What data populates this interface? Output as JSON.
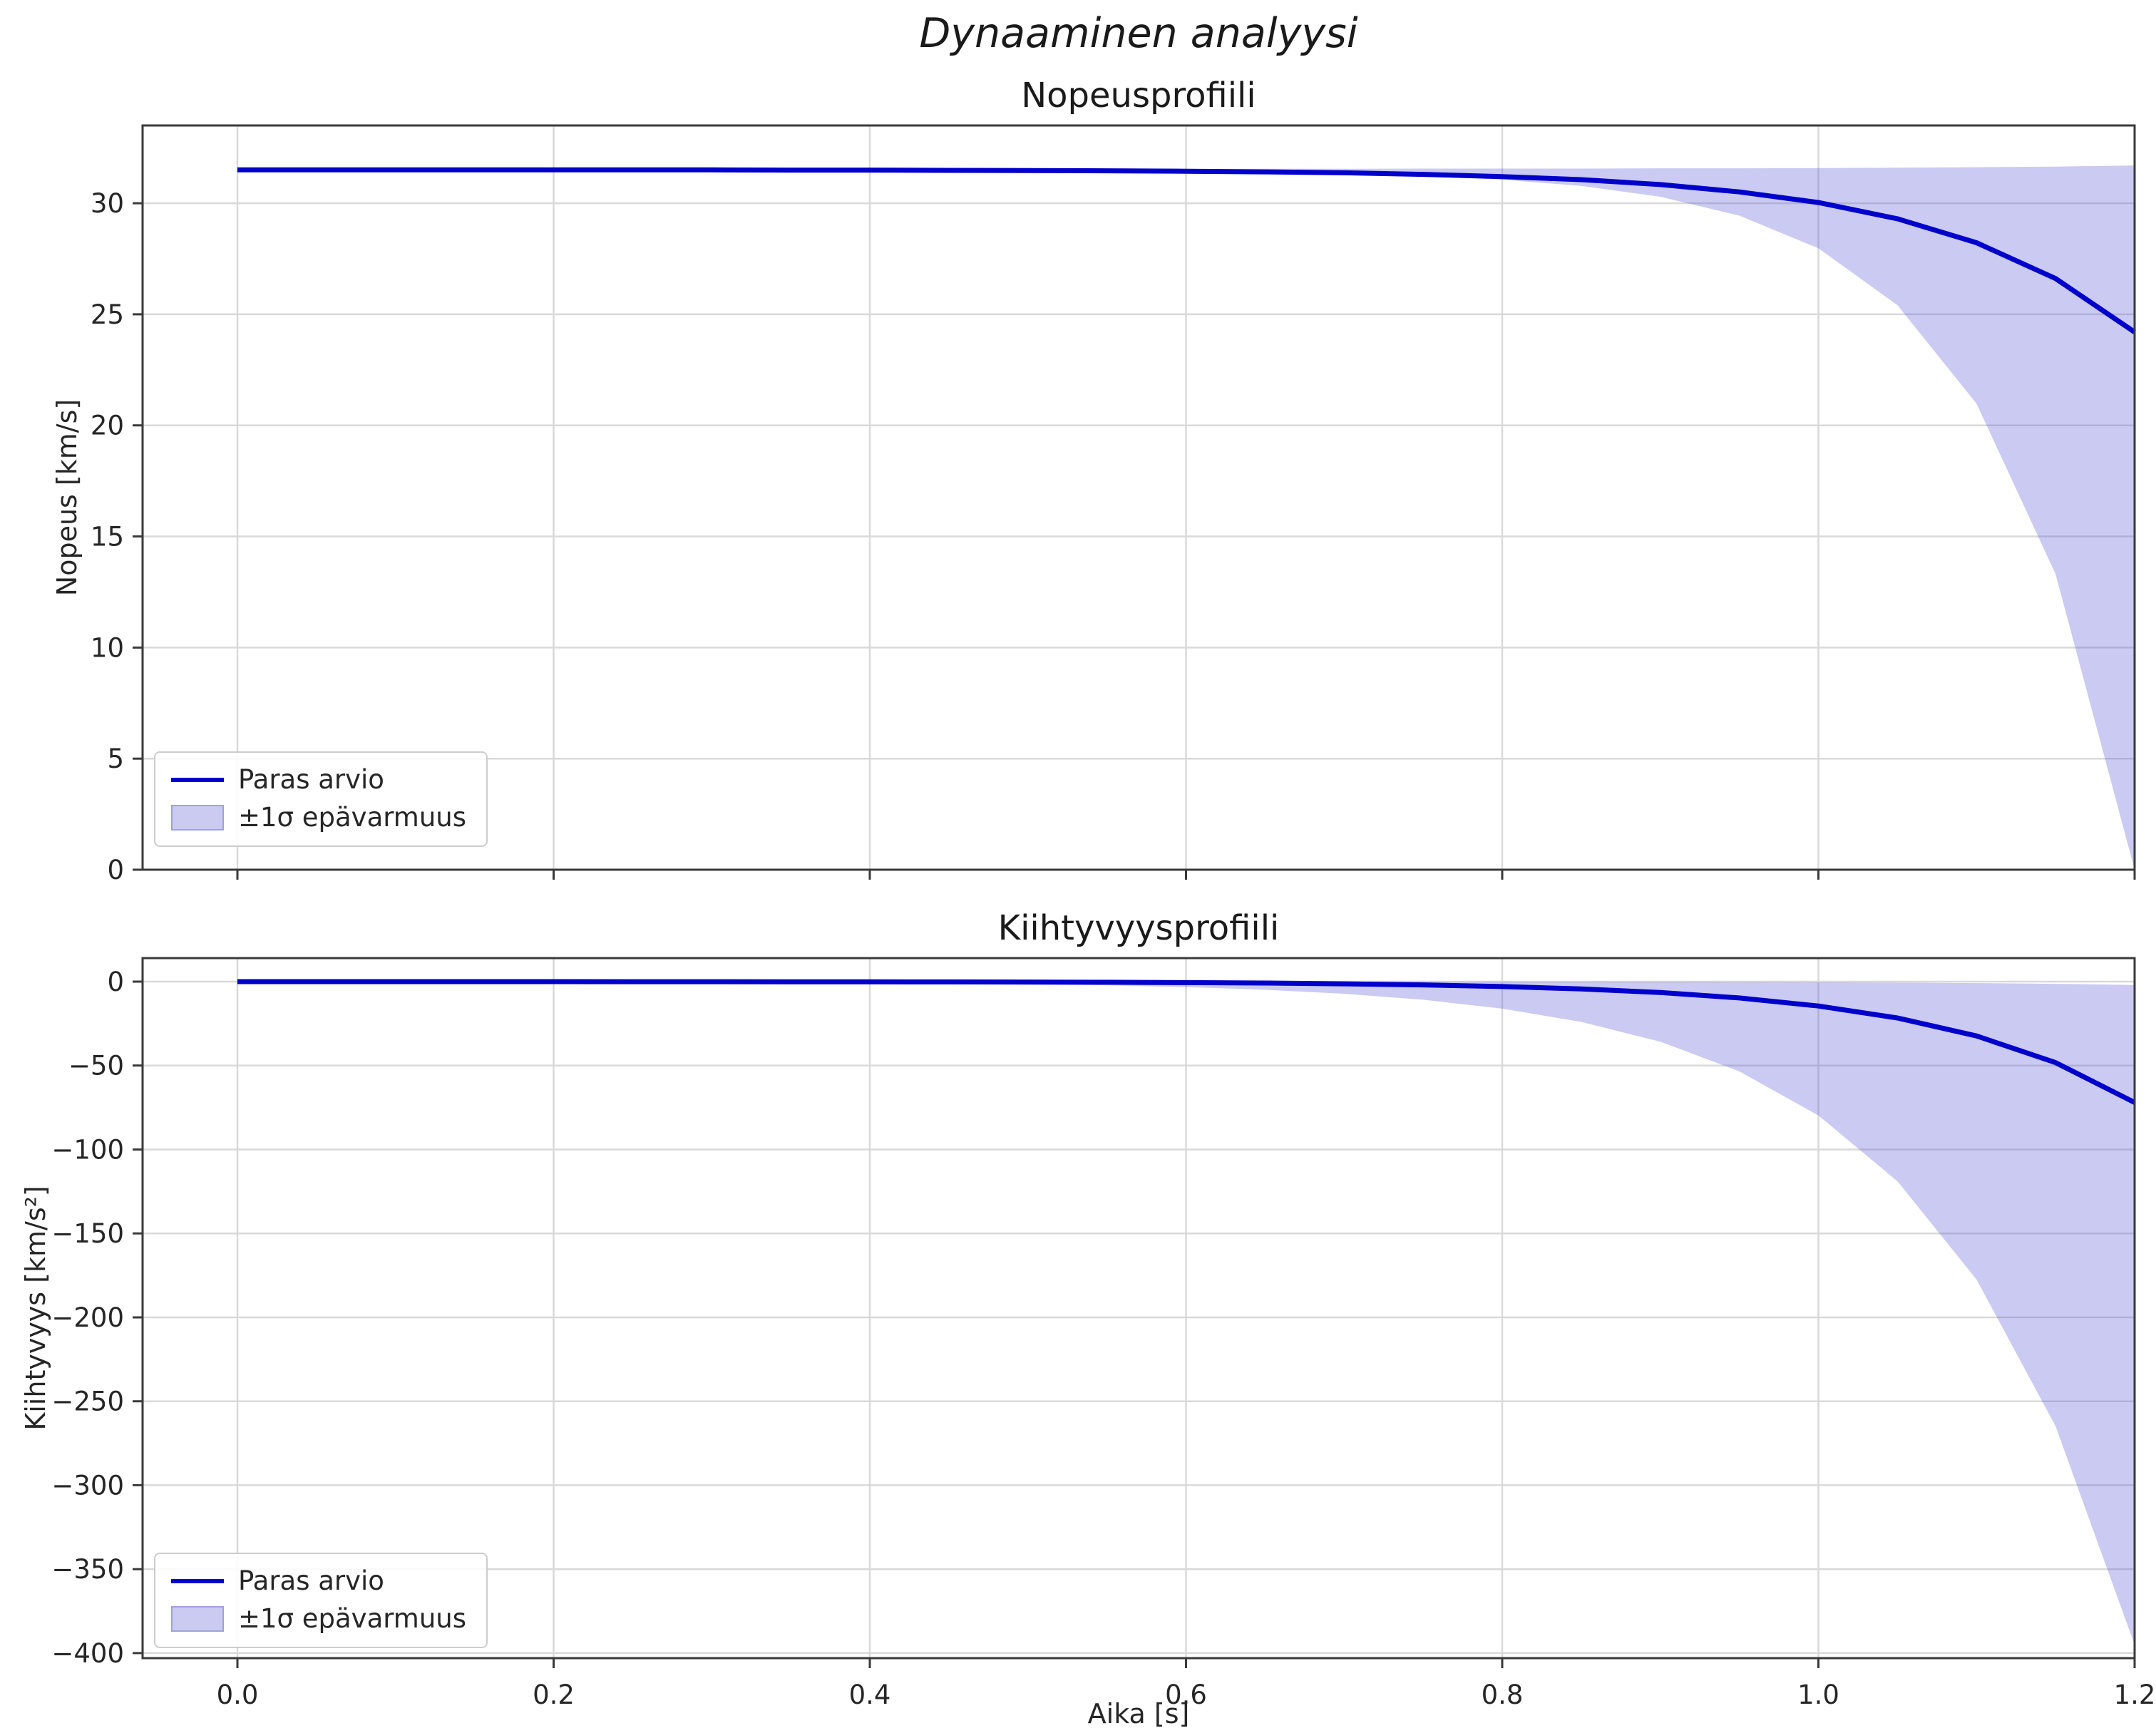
{
  "figure": {
    "suptitle": "Dynaaminen analyysi",
    "background": "#ffffff",
    "line_color": "#0000cc",
    "band_color": "#5a5ad6",
    "band_fill": "#cbcbf1",
    "band_edge": "#a0a0e0",
    "grid_color": "#d9d9d9",
    "spine_color": "#3a3a3a",
    "text_color": "#262626"
  },
  "chart_data": [
    {
      "type": "line",
      "title": "Nopeusprofiili",
      "xlabel": "",
      "ylabel": "Nopeus [km/s]",
      "legend_labels": [
        "Paras arvio",
        "±1σ epävarmuus"
      ],
      "legend_position": "lower left",
      "grid": true,
      "xlim": [
        -0.06,
        1.2
      ],
      "ylim": [
        0,
        33.5
      ],
      "xticks": [
        0.0,
        0.2,
        0.4,
        0.6,
        0.8,
        1.0,
        1.2
      ],
      "xtick_labels": [
        "0.0",
        "0.2",
        "0.4",
        "0.6",
        "0.8",
        "1.0",
        "1.2"
      ],
      "show_xticklabels": false,
      "yticks": [
        0,
        5,
        10,
        15,
        20,
        25,
        30
      ],
      "ytick_labels": [
        "0",
        "5",
        "10",
        "15",
        "20",
        "25",
        "30"
      ],
      "x": [
        0,
        0.05,
        0.1,
        0.15,
        0.2,
        0.25,
        0.3,
        0.35,
        0.4,
        0.45,
        0.5,
        0.55,
        0.6,
        0.65,
        0.7,
        0.75,
        0.8,
        0.85,
        0.9,
        0.95,
        1.0,
        1.05,
        1.1,
        1.15,
        1.2
      ],
      "best": [
        31.5,
        31.5,
        31.5,
        31.5,
        31.5,
        31.5,
        31.5,
        31.49,
        31.49,
        31.48,
        31.47,
        31.46,
        31.44,
        31.41,
        31.37,
        31.3,
        31.2,
        31.06,
        30.84,
        30.51,
        30.03,
        29.3,
        28.22,
        26.61,
        24.2
      ],
      "upper": [
        31.55,
        31.55,
        31.55,
        31.55,
        31.55,
        31.55,
        31.55,
        31.55,
        31.55,
        31.55,
        31.55,
        31.55,
        31.55,
        31.55,
        31.55,
        31.56,
        31.56,
        31.56,
        31.57,
        31.57,
        31.58,
        31.6,
        31.62,
        31.65,
        31.7
      ],
      "lower": [
        31.45,
        31.45,
        31.45,
        31.45,
        31.45,
        31.45,
        31.45,
        31.45,
        31.45,
        31.44,
        31.44,
        31.43,
        31.41,
        31.38,
        31.32,
        31.23,
        31.06,
        30.78,
        30.29,
        29.44,
        27.97,
        25.41,
        20.98,
        13.31,
        0
      ]
    },
    {
      "type": "line",
      "title": "Kiihtyvyysprofiili",
      "xlabel": "Aika [s]",
      "ylabel": "Kiihtyvyys [km/s²]",
      "legend_labels": [
        "Paras arvio",
        "±1σ epävarmuus"
      ],
      "legend_position": "lower left",
      "grid": true,
      "xlim": [
        -0.06,
        1.2
      ],
      "ylim": [
        -403,
        14
      ],
      "xticks": [
        0.0,
        0.2,
        0.4,
        0.6,
        0.8,
        1.0,
        1.2
      ],
      "xtick_labels": [
        "0.0",
        "0.2",
        "0.4",
        "0.6",
        "0.8",
        "1.0",
        "1.2"
      ],
      "show_xticklabels": true,
      "yticks": [
        0,
        -50,
        -100,
        -150,
        -200,
        -250,
        -300,
        -350,
        -400
      ],
      "ytick_labels": [
        "0",
        "−50",
        "−100",
        "−150",
        "−200",
        "−250",
        "−300",
        "−350",
        "−400"
      ],
      "x": [
        0,
        0.05,
        0.1,
        0.15,
        0.2,
        0.25,
        0.3,
        0.35,
        0.4,
        0.45,
        0.5,
        0.55,
        0.6,
        0.65,
        0.7,
        0.75,
        0.8,
        0.85,
        0.9,
        0.95,
        1.0,
        1.05,
        1.1,
        1.15,
        1.2
      ],
      "best": [
        0,
        -0.01,
        -0.01,
        -0.02,
        -0.02,
        -0.04,
        -0.05,
        -0.08,
        -0.12,
        -0.18,
        -0.27,
        -0.4,
        -0.59,
        -0.88,
        -1.32,
        -1.97,
        -2.93,
        -4.38,
        -6.53,
        -9.74,
        -14.54,
        -21.69,
        -32.35,
        -48.26,
        -72
      ],
      "upper": [
        0,
        0,
        0,
        0,
        0,
        0,
        0,
        0,
        0,
        -0.01,
        -0.01,
        -0.01,
        -0.02,
        -0.02,
        -0.04,
        -0.05,
        -0.08,
        -0.12,
        -0.18,
        -0.27,
        -0.4,
        -0.6,
        -0.9,
        -1.34,
        -2
      ],
      "lower": [
        -0.03,
        -0.04,
        -0.06,
        -0.09,
        -0.13,
        -0.2,
        -0.3,
        -0.44,
        -0.66,
        -0.98,
        -1.46,
        -2.18,
        -3.25,
        -4.85,
        -7.23,
        -10.79,
        -16.1,
        -24.02,
        -35.83,
        -53.46,
        -79.75,
        -118.97,
        -177.48,
        -264.78,
        -395
      ]
    }
  ]
}
